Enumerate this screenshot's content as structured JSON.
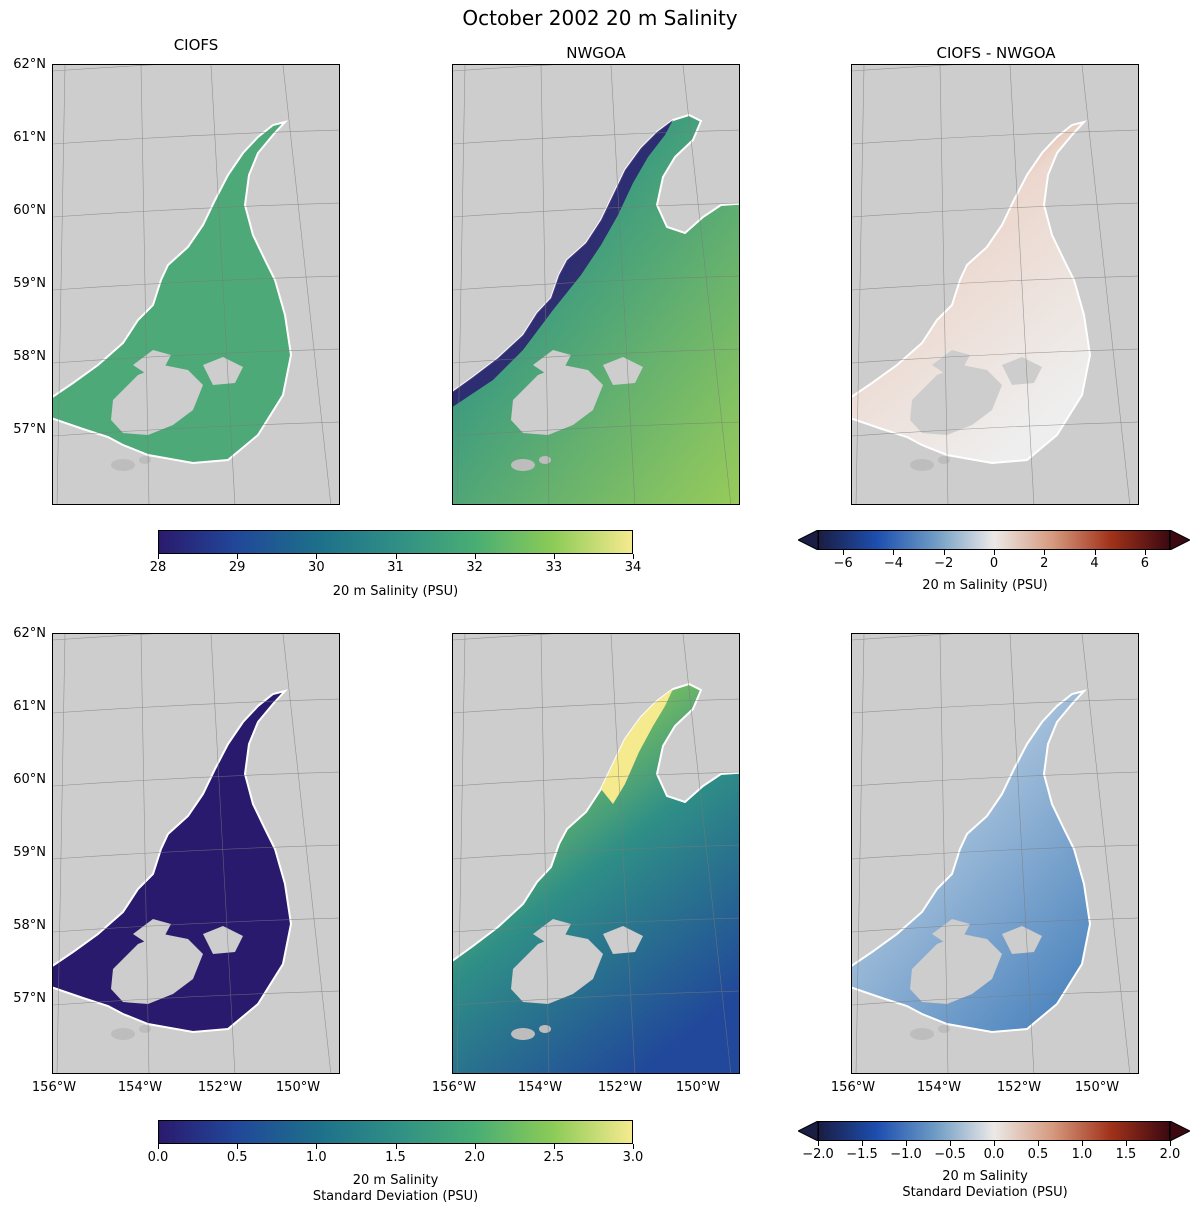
{
  "figure": {
    "title": "October 2002 20 m Salinity"
  },
  "panels": {
    "ciofs": {
      "title": "CIOFS"
    },
    "nwgoa": {
      "title": "NWGOA"
    },
    "diff": {
      "title": "CIOFS - NWGOA"
    }
  },
  "lat_labels": [
    "62°N",
    "61°N",
    "60°N",
    "59°N",
    "58°N",
    "57°N"
  ],
  "lon_labels": [
    "156°W",
    "154°W",
    "152°W",
    "150°W"
  ],
  "colorbars": {
    "salinity": {
      "label": "20 m Salinity (PSU)",
      "ticks": [
        "28",
        "29",
        "30",
        "31",
        "32",
        "33",
        "34"
      ],
      "range": [
        28,
        34
      ],
      "colormap": "haline",
      "colors": [
        "#2a1a6e",
        "#21489a",
        "#1d6f8a",
        "#2f8f86",
        "#48ad74",
        "#8ccb57",
        "#f6ea8f"
      ]
    },
    "salinity_diff": {
      "label": "20 m Salinity (PSU)",
      "ticks": [
        "−6",
        "−4",
        "−2",
        "0",
        "2",
        "4",
        "6"
      ],
      "range": [
        -7,
        7
      ],
      "extend": "both",
      "colormap": "balance",
      "colors": [
        "#1a1d44",
        "#1d4fb0",
        "#6f9cc4",
        "#ece9e7",
        "#d59a7f",
        "#a1321a",
        "#3c0911"
      ]
    },
    "std": {
      "label_line1": "20 m Salinity",
      "label_line2": "Standard Deviation (PSU)",
      "ticks": [
        "0.0",
        "0.5",
        "1.0",
        "1.5",
        "2.0",
        "2.5",
        "3.0"
      ],
      "range": [
        0,
        3
      ],
      "colormap": "haline",
      "colors": [
        "#2a1a6e",
        "#21489a",
        "#1d6f8a",
        "#2f8f86",
        "#48ad74",
        "#8ccb57",
        "#f6ea8f"
      ]
    },
    "std_diff": {
      "label_line1": "20 m Salinity",
      "label_line2": "Standard Deviation (PSU)",
      "ticks": [
        "−2.0",
        "−1.5",
        "−1.0",
        "−0.5",
        "0.0",
        "0.5",
        "1.0",
        "1.5",
        "2.0"
      ],
      "range": [
        -2,
        2
      ],
      "extend": "both",
      "colormap": "balance",
      "colors": [
        "#1a1d44",
        "#1d4fb0",
        "#6f9cc4",
        "#ece9e7",
        "#d59a7f",
        "#a1321a",
        "#3c0911"
      ]
    }
  },
  "map_colors": {
    "land": "#cdcdcd",
    "ocean_masked": "#ffffff",
    "ciofs_salinity": "#4ea978",
    "nwgoa_low": "#2a1a6e",
    "nwgoa_mid": "#3a9a80",
    "nwgoa_high": "#9cce58",
    "diff_pos": "#b54b2d",
    "diff_light": "#ecd7cd",
    "diff_neg": "#4f86bf",
    "std_low": "#2a1a6e",
    "std_high": "#f6ea8f",
    "grid": "#7a7a7a"
  }
}
